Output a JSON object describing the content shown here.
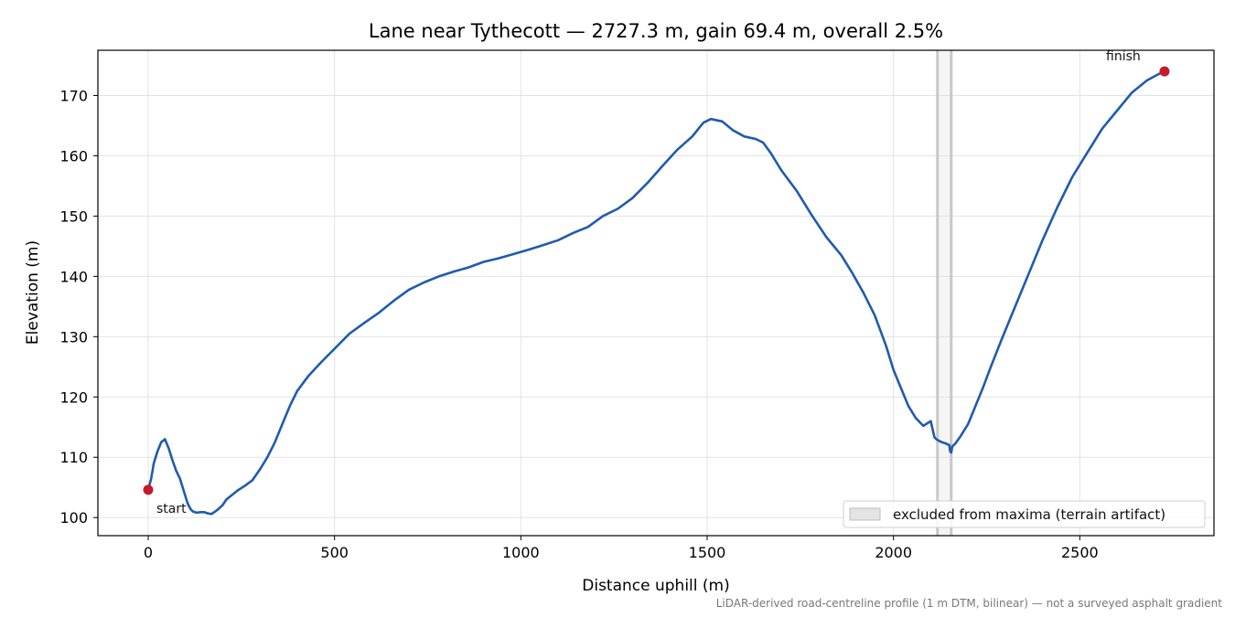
{
  "chart_data": {
    "type": "line",
    "title": "Lane near Tythecott — 2727.3 m, gain 69.4 m, overall 2.5%",
    "xlabel": "Distance uphill (m)",
    "ylabel": "Elevation (m)",
    "xlim": [
      -135,
      2860
    ],
    "ylim": [
      97,
      177.5
    ],
    "x_ticks": [
      0,
      500,
      1000,
      1500,
      2000,
      2500
    ],
    "y_ticks": [
      100,
      110,
      120,
      130,
      140,
      150,
      160,
      170
    ],
    "grid": true,
    "line_color": "#1f5bb0",
    "marker_color": "#c41a2a",
    "series": [
      {
        "x": [
          0,
          8,
          15,
          25,
          35,
          45,
          55,
          65,
          75,
          85,
          95,
          105,
          110,
          115,
          120,
          130,
          140,
          150,
          160,
          170,
          180,
          190,
          200,
          210,
          220,
          240,
          260,
          280,
          300,
          320,
          340,
          360,
          380,
          400,
          430,
          460,
          500,
          540,
          580,
          620,
          660,
          700,
          740,
          780,
          820,
          860,
          900,
          940,
          980,
          1020,
          1060,
          1100,
          1140,
          1180,
          1220,
          1260,
          1300,
          1340,
          1380,
          1420,
          1460,
          1490,
          1510,
          1540,
          1570,
          1600,
          1630,
          1650,
          1670,
          1700,
          1740,
          1780,
          1820,
          1860,
          1890,
          1920,
          1950,
          1980,
          2000,
          2020,
          2040,
          2060,
          2080,
          2100,
          2110,
          2115,
          2120,
          2130,
          2140,
          2150,
          2152,
          2155,
          2158,
          2165,
          2180,
          2200,
          2220,
          2240,
          2260,
          2290,
          2320,
          2360,
          2400,
          2440,
          2480,
          2520,
          2560,
          2600,
          2640,
          2680,
          2710,
          2727.3
        ],
        "y": [
          104.6,
          106.5,
          109.0,
          111.0,
          112.5,
          113.0,
          111.5,
          109.5,
          107.8,
          106.5,
          104.5,
          102.5,
          101.8,
          101.3,
          101.0,
          100.8,
          100.9,
          100.9,
          100.7,
          100.6,
          101.0,
          101.5,
          102.1,
          103.0,
          103.5,
          104.5,
          105.3,
          106.2,
          108.0,
          110.0,
          112.5,
          115.5,
          118.5,
          121.0,
          123.5,
          125.5,
          128.0,
          130.5,
          132.3,
          134.0,
          136.0,
          137.8,
          139.0,
          140.0,
          140.8,
          141.5,
          142.4,
          143.0,
          143.7,
          144.4,
          145.2,
          146.0,
          147.2,
          148.2,
          150.0,
          151.2,
          153.0,
          155.5,
          158.3,
          161.0,
          163.2,
          165.5,
          166.1,
          165.7,
          164.2,
          163.2,
          162.8,
          162.2,
          160.5,
          157.5,
          154.2,
          150.2,
          146.5,
          143.5,
          140.5,
          137.2,
          133.5,
          128.5,
          124.5,
          121.5,
          118.5,
          116.5,
          115.2,
          116.0,
          113.3,
          113.0,
          112.8,
          112.5,
          112.3,
          112.0,
          111.0,
          110.8,
          111.8,
          112.2,
          113.5,
          115.5,
          118.5,
          121.5,
          124.8,
          129.5,
          134.0,
          140.0,
          146.0,
          151.5,
          156.5,
          160.5,
          164.5,
          167.5,
          170.5,
          172.5,
          173.5,
          174.0
        ]
      }
    ],
    "start": {
      "x": 0,
      "y": 104.6,
      "label": "start"
    },
    "finish": {
      "x": 2727.3,
      "y": 174.0,
      "label": "finish"
    },
    "excluded_band": {
      "x_range": [
        2118,
        2155
      ],
      "label": "excluded from maxima (terrain artifact)"
    },
    "legend_placement": "lower-right",
    "footnote": "LiDAR-derived road-centreline profile (1 m DTM, bilinear) — not a surveyed asphalt gradient"
  }
}
